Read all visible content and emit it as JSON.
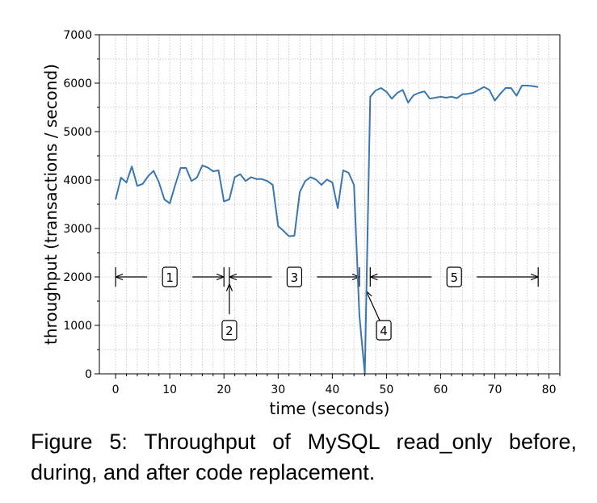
{
  "chart_data": {
    "type": "line",
    "xlabel": "time (seconds)",
    "ylabel": "throughput (transactions / second)",
    "xlim": [
      -3,
      82
    ],
    "ylim": [
      0,
      7000
    ],
    "x_ticks": [
      0,
      10,
      20,
      30,
      40,
      50,
      60,
      70,
      80
    ],
    "y_ticks": [
      0,
      1000,
      2000,
      3000,
      4000,
      5000,
      6000,
      7000
    ],
    "grid": true,
    "series": [
      {
        "color": "#3a76af",
        "x": [
          0,
          1,
          2,
          3,
          4,
          5,
          6,
          7,
          8,
          9,
          10,
          11,
          12,
          13,
          14,
          15,
          16,
          17,
          18,
          19,
          20,
          21,
          22,
          23,
          24,
          25,
          26,
          27,
          28,
          29,
          30,
          31,
          32,
          33,
          34,
          35,
          36,
          37,
          38,
          39,
          40,
          41,
          42,
          43,
          44,
          45,
          46,
          47,
          48,
          49,
          50,
          51,
          52,
          53,
          54,
          55,
          56,
          57,
          58,
          59,
          60,
          61,
          62,
          63,
          64,
          65,
          66,
          67,
          68,
          69,
          70,
          71,
          72,
          73,
          74,
          75,
          76,
          77,
          78
        ],
        "y": [
          3600,
          4050,
          3950,
          4280,
          3880,
          3920,
          4080,
          4190,
          3950,
          3600,
          3520,
          3900,
          4250,
          4250,
          3980,
          4050,
          4300,
          4260,
          4180,
          4200,
          3560,
          3600,
          4060,
          4120,
          3980,
          4060,
          4020,
          4020,
          3980,
          3900,
          3050,
          2950,
          2840,
          2850,
          3750,
          3980,
          4060,
          4010,
          3900,
          4010,
          3950,
          3420,
          4200,
          4150,
          3900,
          1200,
          0,
          5720,
          5850,
          5900,
          5820,
          5680,
          5800,
          5860,
          5600,
          5750,
          5800,
          5830,
          5680,
          5700,
          5720,
          5700,
          5720,
          5690,
          5770,
          5780,
          5800,
          5860,
          5920,
          5860,
          5640,
          5780,
          5900,
          5900,
          5740,
          5950,
          5950,
          5940,
          5920
        ]
      }
    ],
    "annotations": [
      {
        "label": "1",
        "span": [
          0,
          20
        ]
      },
      {
        "label": "2",
        "at": 21
      },
      {
        "label": "3",
        "span": [
          21,
          45
        ]
      },
      {
        "label": "4",
        "at": 46.5
      },
      {
        "label": "5",
        "span": [
          47,
          78
        ]
      }
    ]
  },
  "caption": "Figure 5: Throughput of MySQL read_only before, during, and after code replacement."
}
